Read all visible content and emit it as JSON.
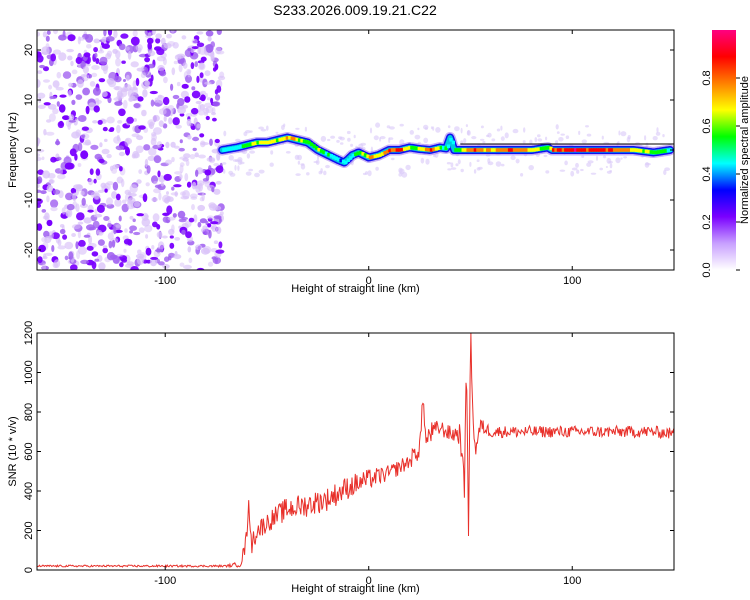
{
  "title": "S233.2026.009.19.21.C22",
  "chart_data": [
    {
      "type": "heatmap",
      "title": "S233.2026.009.19.21.C22",
      "xlabel": "Height of straight line (km)",
      "ylabel": "Frequency (Hz)",
      "xlim": [
        -163,
        150
      ],
      "ylim": [
        -24,
        24
      ],
      "xticks": [
        -100,
        0,
        100
      ],
      "yticks": [
        -20,
        -10,
        0,
        10,
        20
      ],
      "xtick_labels": [
        "-100",
        "0",
        "100"
      ],
      "ytick_labels": [
        "-20",
        "-10",
        "0",
        "10",
        "20"
      ],
      "noise_region_x": [
        -163,
        -72
      ],
      "ridge": {
        "x": [
          -72,
          -65,
          -60,
          -55,
          -50,
          -45,
          -40,
          -35,
          -30,
          -25,
          -20,
          -15,
          -12,
          -8,
          -5,
          0,
          5,
          10,
          15,
          20,
          25,
          30,
          35,
          38,
          40,
          42,
          45,
          50,
          60,
          70,
          80,
          85,
          88,
          90,
          100,
          110,
          120,
          130,
          140,
          148
        ],
        "freq": [
          0,
          0.5,
          1,
          1.5,
          1.5,
          2,
          2.5,
          2,
          1.5,
          0,
          -1,
          -2,
          -2.5,
          -1,
          -0.5,
          -1.5,
          -1,
          0,
          0,
          0.5,
          0.2,
          0,
          0.5,
          0.3,
          2.5,
          0,
          0,
          0,
          0,
          0,
          0,
          0.3,
          0.5,
          0,
          0,
          0,
          0,
          0,
          -0.5,
          0
        ],
        "amplitude": [
          0.45,
          0.5,
          0.6,
          0.7,
          0.75,
          0.7,
          0.85,
          0.7,
          0.6,
          0.65,
          0.55,
          0.4,
          0.5,
          0.5,
          0.6,
          0.8,
          0.7,
          0.9,
          0.95,
          0.6,
          0.7,
          0.9,
          0.6,
          0.5,
          0.5,
          0.55,
          0.7,
          0.85,
          0.8,
          0.9,
          0.75,
          0.6,
          0.6,
          0.95,
          0.98,
          0.95,
          0.9,
          0.7,
          0.6,
          0.5
        ]
      },
      "colorbar": {
        "label": "Normalized spectral amplitude",
        "range": [
          0,
          1
        ],
        "ticks": [
          0.0,
          0.2,
          0.4,
          0.6,
          0.8
        ],
        "tick_labels": [
          "0.0",
          "0.2",
          "0.4",
          "0.6",
          "0.8"
        ],
        "colors": [
          "#ffffff",
          "#c8a0ff",
          "#7a00ff",
          "#0000ff",
          "#00ffff",
          "#00ff00",
          "#ffff00",
          "#ff8000",
          "#ff0000",
          "#ff0080"
        ]
      }
    },
    {
      "type": "line",
      "xlabel": "Height of straight line (km)",
      "ylabel": "SNR (10 * v/v)",
      "xlim": [
        -163,
        150
      ],
      "ylim": [
        0,
        1200
      ],
      "xticks": [
        -100,
        0,
        100
      ],
      "yticks": [
        0,
        200,
        400,
        600,
        800,
        1000,
        1200
      ],
      "xtick_labels": [
        "-100",
        "0",
        "100"
      ],
      "ytick_labels": [
        "0",
        "200",
        "400",
        "600",
        "800",
        "1000",
        "1200"
      ],
      "series": [
        {
          "name": "SNR",
          "color": "#e8302a",
          "x": [
            -163,
            -120,
            -90,
            -70,
            -63,
            -60,
            -59,
            -58,
            -55,
            -50,
            -40,
            -30,
            -20,
            -10,
            0,
            10,
            20,
            25,
            27,
            28,
            30,
            35,
            40,
            45,
            47,
            48,
            49,
            50,
            52,
            55,
            60,
            80,
            100,
            120,
            140,
            150
          ],
          "y": [
            20,
            20,
            20,
            20,
            30,
            150,
            400,
            120,
            200,
            240,
            310,
            330,
            360,
            420,
            460,
            490,
            550,
            620,
            880,
            640,
            690,
            720,
            690,
            690,
            400,
            1150,
            150,
            1200,
            600,
            730,
            700,
            700,
            700,
            700,
            700,
            690
          ],
          "noise": [
            5,
            5,
            5,
            5,
            15,
            60,
            60,
            60,
            50,
            50,
            60,
            60,
            60,
            60,
            50,
            40,
            40,
            60,
            60,
            60,
            60,
            40,
            40,
            60,
            60,
            60,
            60,
            60,
            60,
            40,
            30,
            30,
            30,
            30,
            30,
            30
          ]
        }
      ]
    }
  ]
}
